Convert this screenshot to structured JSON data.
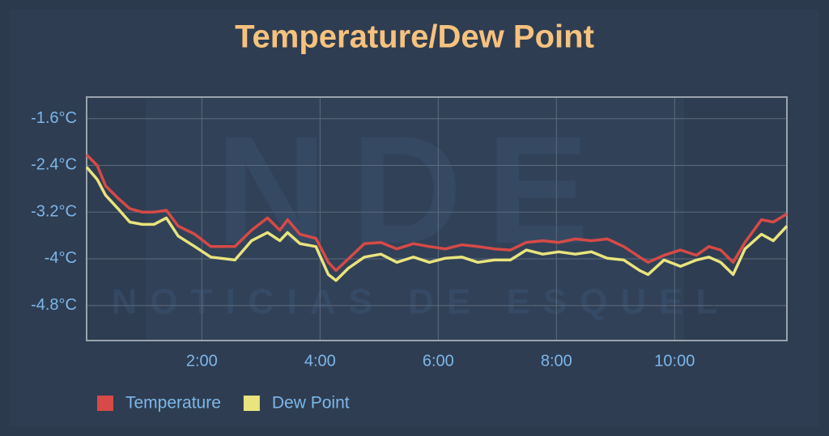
{
  "chart_data": {
    "type": "line",
    "title": "Temperature/Dew Point",
    "watermark": {
      "logo": "NDE",
      "tagline": "NOTICIAS DE ESQUEL"
    },
    "x": [
      0.05,
      0.23,
      0.37,
      0.58,
      0.78,
      0.99,
      1.19,
      1.4,
      1.6,
      1.88,
      2.15,
      2.56,
      2.84,
      3.11,
      3.32,
      3.45,
      3.66,
      3.93,
      4.14,
      4.27,
      4.48,
      4.75,
      5.03,
      5.3,
      5.58,
      5.85,
      6.12,
      6.4,
      6.67,
      6.95,
      7.22,
      7.49,
      7.77,
      8.04,
      8.32,
      8.59,
      8.86,
      9.14,
      9.41,
      9.55,
      9.82,
      10.1,
      10.37,
      10.58,
      10.78,
      10.99,
      11.19,
      11.47,
      11.67,
      11.9
    ],
    "series": [
      {
        "name": "Temperature",
        "color": "#d64a47",
        "values": [
          -2.22,
          -2.4,
          -2.75,
          -2.96,
          -3.14,
          -3.2,
          -3.2,
          -3.17,
          -3.44,
          -3.58,
          -3.79,
          -3.79,
          -3.51,
          -3.3,
          -3.51,
          -3.33,
          -3.58,
          -3.65,
          -4.06,
          -4.2,
          -4.0,
          -3.74,
          -3.72,
          -3.83,
          -3.74,
          -3.79,
          -3.83,
          -3.76,
          -3.79,
          -3.83,
          -3.85,
          -3.72,
          -3.69,
          -3.72,
          -3.66,
          -3.69,
          -3.66,
          -3.79,
          -3.97,
          -4.06,
          -3.94,
          -3.85,
          -3.94,
          -3.79,
          -3.85,
          -4.06,
          -3.72,
          -3.33,
          -3.37,
          -3.23
        ]
      },
      {
        "name": "Dew Point",
        "color": "#e9e47d",
        "values": [
          -2.43,
          -2.64,
          -2.91,
          -3.14,
          -3.37,
          -3.41,
          -3.41,
          -3.3,
          -3.61,
          -3.79,
          -3.97,
          -4.02,
          -3.69,
          -3.55,
          -3.69,
          -3.55,
          -3.74,
          -3.79,
          -4.27,
          -4.37,
          -4.16,
          -3.97,
          -3.92,
          -4.06,
          -3.97,
          -4.06,
          -3.99,
          -3.97,
          -4.06,
          -4.02,
          -4.02,
          -3.85,
          -3.92,
          -3.88,
          -3.92,
          -3.88,
          -3.99,
          -4.02,
          -4.2,
          -4.27,
          -4.02,
          -4.13,
          -4.02,
          -3.97,
          -4.06,
          -4.27,
          -3.83,
          -3.58,
          -3.69,
          -3.44
        ]
      }
    ],
    "xlim": [
      0.05,
      11.9
    ],
    "ylim": [
      -5.4,
      -1.23
    ],
    "xticks": [
      {
        "value": 2,
        "label": "2:00"
      },
      {
        "value": 4,
        "label": "4:00"
      },
      {
        "value": 6,
        "label": "6:00"
      },
      {
        "value": 8,
        "label": "8:00"
      },
      {
        "value": 10,
        "label": "10:00"
      }
    ],
    "yticks": [
      {
        "value": -1.6,
        "label": "-1.6°C"
      },
      {
        "value": -2.4,
        "label": "-2.4°C"
      },
      {
        "value": -3.2,
        "label": "-3.2°C"
      },
      {
        "value": -4,
        "label": "-4°C"
      },
      {
        "value": -4.8,
        "label": "-4.8°C"
      }
    ],
    "grid": true
  }
}
